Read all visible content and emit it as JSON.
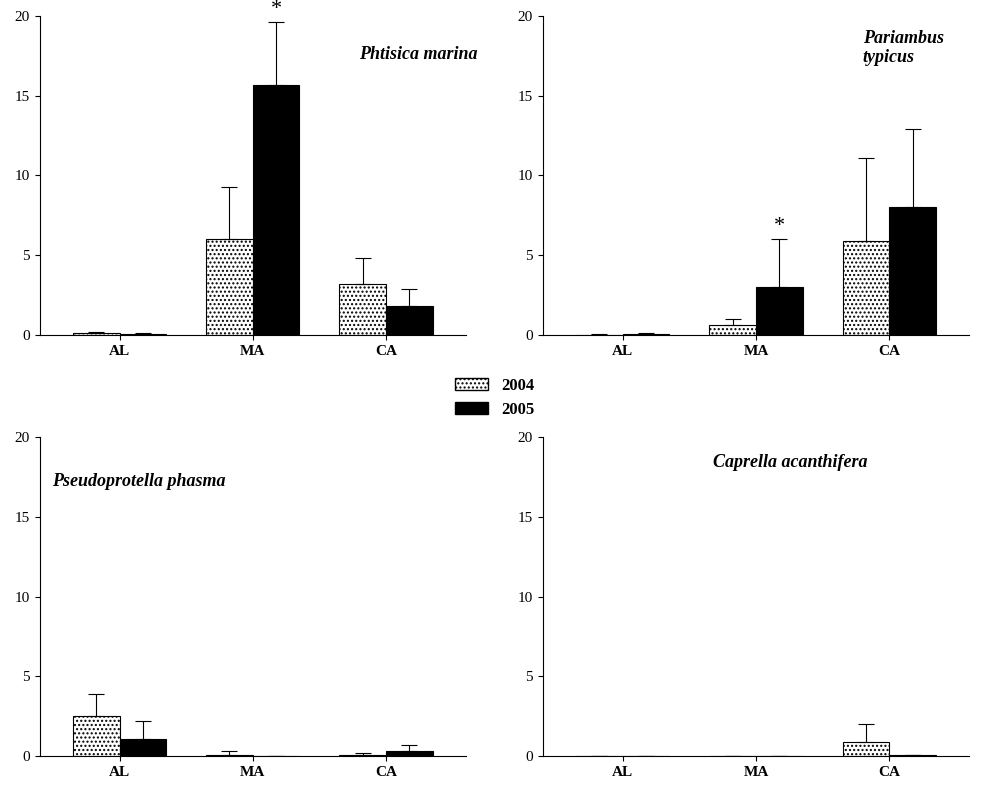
{
  "chart_data": [
    {
      "type": "bar",
      "title": "Phtisica marina",
      "categories": [
        "AL",
        "MA",
        "CA"
      ],
      "series": [
        {
          "name": "2004",
          "color": "#ffffff",
          "values": [
            0.1,
            6.0,
            3.2
          ],
          "error": [
            0.1,
            3.3,
            1.6
          ]
        },
        {
          "name": "2005",
          "color": "#000000",
          "values": [
            0.05,
            15.7,
            1.8
          ],
          "error": [
            0.05,
            3.9,
            1.1
          ]
        }
      ],
      "annotations": [
        {
          "text": "*",
          "category": "MA",
          "series": "2005"
        }
      ],
      "ylim": [
        0,
        20
      ],
      "yticks": [
        0,
        5,
        10,
        15,
        20
      ],
      "grid": false,
      "legend": "center"
    },
    {
      "type": "bar",
      "title": "Pariambus typicus",
      "categories": [
        "AL",
        "MA",
        "CA"
      ],
      "series": [
        {
          "name": "2004",
          "color": "#ffffff",
          "values": [
            0.02,
            0.6,
            5.9
          ],
          "error": [
            0.02,
            0.4,
            5.2
          ]
        },
        {
          "name": "2005",
          "color": "#000000",
          "values": [
            0.05,
            3.0,
            8.0
          ],
          "error": [
            0.1,
            3.0,
            4.9
          ]
        }
      ],
      "annotations": [
        {
          "text": "*",
          "category": "MA",
          "series": "2005"
        }
      ],
      "ylim": [
        0,
        20
      ],
      "yticks": [
        0,
        5,
        10,
        15,
        20
      ],
      "grid": false,
      "legend": "center"
    },
    {
      "type": "bar",
      "title": "Pseudoprotella phasma",
      "categories": [
        "AL",
        "MA",
        "CA"
      ],
      "series": [
        {
          "name": "2004",
          "color": "#ffffff",
          "values": [
            2.5,
            0.1,
            0.1
          ],
          "error": [
            1.4,
            0.2,
            0.1
          ]
        },
        {
          "name": "2005",
          "color": "#000000",
          "values": [
            1.1,
            0,
            0.3
          ],
          "error": [
            1.1,
            0,
            0.4
          ]
        }
      ],
      "annotations": [],
      "ylim": [
        0,
        20
      ],
      "yticks": [
        0,
        5,
        10,
        15,
        20
      ],
      "grid": false,
      "legend": "center"
    },
    {
      "type": "bar",
      "title": "Caprella acanthifera",
      "categories": [
        "AL",
        "MA",
        "CA"
      ],
      "series": [
        {
          "name": "2004",
          "color": "#ffffff",
          "values": [
            0,
            0,
            0.9
          ],
          "error": [
            0,
            0,
            1.1
          ]
        },
        {
          "name": "2005",
          "color": "#000000",
          "values": [
            0,
            0,
            0.05
          ],
          "error": [
            0,
            0,
            0.05
          ]
        }
      ],
      "annotations": [],
      "ylim": [
        0,
        20
      ],
      "yticks": [
        0,
        5,
        10,
        15,
        20
      ],
      "grid": false,
      "legend": "center"
    }
  ]
}
